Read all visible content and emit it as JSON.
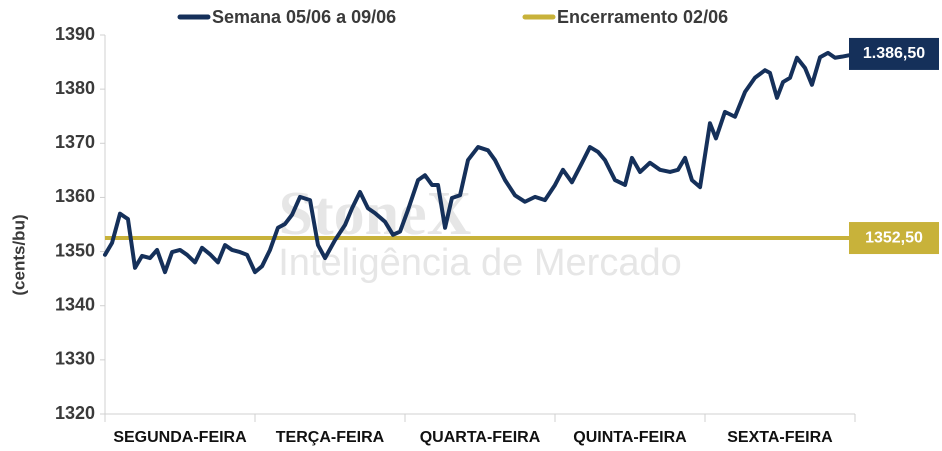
{
  "chart_data": {
    "type": "line",
    "watermark": [
      "StoneX",
      "Inteligência de Mercado"
    ],
    "ylabel": "(cents/bu)",
    "xlim": [
      0,
      5
    ],
    "xticks": [
      {
        "value": 0.5,
        "label": "SEGUNDA-FEIRA"
      },
      {
        "value": 1.5,
        "label": "TERÇA-FEIRA"
      },
      {
        "value": 2.5,
        "label": "QUARTA-FEIRA"
      },
      {
        "value": 3.5,
        "label": "QUINTA-FEIRA"
      },
      {
        "value": 4.5,
        "label": "SEXTA-FEIRA"
      }
    ],
    "ylim": [
      1320,
      1390
    ],
    "yticks": [
      1320,
      1330,
      1340,
      1350,
      1360,
      1370,
      1380,
      1390
    ],
    "grid": false,
    "legend": "top",
    "series": [
      {
        "name": "Semana 05/06 a 09/06",
        "color": "#15305a",
        "x": [
          0,
          0.047,
          0.1,
          0.153,
          0.2,
          0.247,
          0.3,
          0.347,
          0.4,
          0.447,
          0.5,
          0.547,
          0.6,
          0.647,
          0.7,
          0.753,
          0.8,
          0.847,
          0.9,
          0.947,
          1,
          1.047,
          1.1,
          1.153,
          1.2,
          1.247,
          1.3,
          1.367,
          1.42,
          1.467,
          1.533,
          1.6,
          1.647,
          1.7,
          1.753,
          1.8,
          1.867,
          1.92,
          1.967,
          2.02,
          2.087,
          2.133,
          2.18,
          2.22,
          2.267,
          2.313,
          2.367,
          2.42,
          2.487,
          2.553,
          2.6,
          2.667,
          2.733,
          2.8,
          2.867,
          2.933,
          3,
          3.053,
          3.113,
          3.18,
          3.233,
          3.287,
          3.333,
          3.4,
          3.467,
          3.513,
          3.567,
          3.633,
          3.7,
          3.767,
          3.82,
          3.867,
          3.913,
          3.967,
          4.033,
          4.073,
          4.133,
          4.2,
          4.267,
          4.333,
          4.4,
          4.433,
          4.48,
          4.52,
          4.567,
          4.613,
          4.667,
          4.713,
          4.767,
          4.82,
          4.867,
          4.913,
          4.967,
          5
        ],
        "values": [
          1349.4,
          1351.6,
          1357,
          1356,
          1347,
          1349.2,
          1348.8,
          1350.3,
          1346.2,
          1349.9,
          1350.3,
          1349.4,
          1348,
          1350.7,
          1349.5,
          1348,
          1351.2,
          1350.3,
          1349.9,
          1349.4,
          1346.2,
          1347.3,
          1350.3,
          1354.4,
          1355.1,
          1356.8,
          1360.1,
          1359.5,
          1351.2,
          1348.8,
          1352.1,
          1354.9,
          1358,
          1361,
          1358,
          1357.1,
          1355.5,
          1353.1,
          1353.7,
          1357.7,
          1363.2,
          1364.1,
          1362.3,
          1362.3,
          1354.4,
          1359.9,
          1360.4,
          1366.9,
          1369.3,
          1368.7,
          1366.9,
          1363.2,
          1360.4,
          1359.2,
          1360.1,
          1359.5,
          1362.3,
          1365.1,
          1362.8,
          1366.4,
          1369.3,
          1368.4,
          1366.9,
          1363.2,
          1362.3,
          1367.3,
          1364.7,
          1366.4,
          1365.1,
          1364.7,
          1365.1,
          1367.3,
          1363.2,
          1361.9,
          1373.7,
          1370.9,
          1375.8,
          1374.9,
          1379.5,
          1382.1,
          1383.5,
          1383,
          1378.4,
          1381.3,
          1382.1,
          1385.8,
          1383.9,
          1380.8,
          1385.9,
          1386.7,
          1385.8,
          1386,
          1386.3,
          1386.5
        ],
        "end_label": {
          "value": 1386.5,
          "label": "1.386,50"
        }
      }
    ],
    "reference": {
      "name": "Encerramento 02/06",
      "color": "#c8b23a",
      "value": 1352.5,
      "label": "1352,50"
    }
  }
}
